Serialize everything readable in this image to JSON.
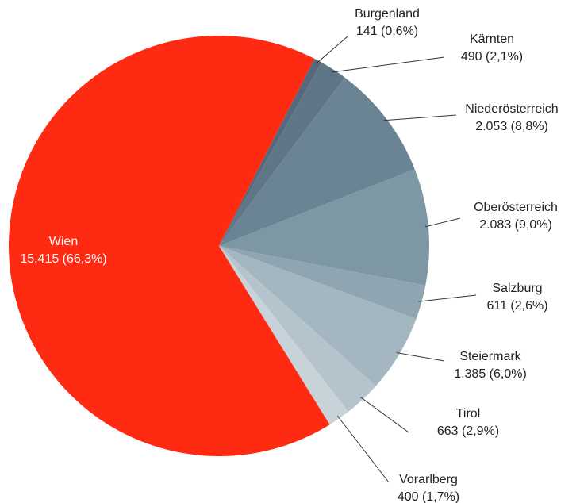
{
  "chart_data": {
    "type": "pie",
    "categories": [
      "Burgenland",
      "Kärnten",
      "Niederösterreich",
      "Oberösterreich",
      "Salzburg",
      "Steiermark",
      "Tirol",
      "Vorarlberg",
      "Wien"
    ],
    "values": [
      141,
      490,
      2053,
      2083,
      611,
      1385,
      663,
      400,
      15415
    ],
    "value_labels": [
      "141 (0,6%)",
      "490 (2,1%)",
      "2.053 (8,8%)",
      "2.083 (9,0%)",
      "611 (2,6%)",
      "1.385 (6,0%)",
      "663 (2,9%)",
      "400 (1,7%)",
      "15.415 (66,3%)"
    ],
    "colors": [
      "#56697a",
      "#5f7686",
      "#6b8494",
      "#7d97a5",
      "#8fa6b2",
      "#a4b6c0",
      "#b5c4cc",
      "#c8d3d9",
      "#ff2a12"
    ]
  }
}
